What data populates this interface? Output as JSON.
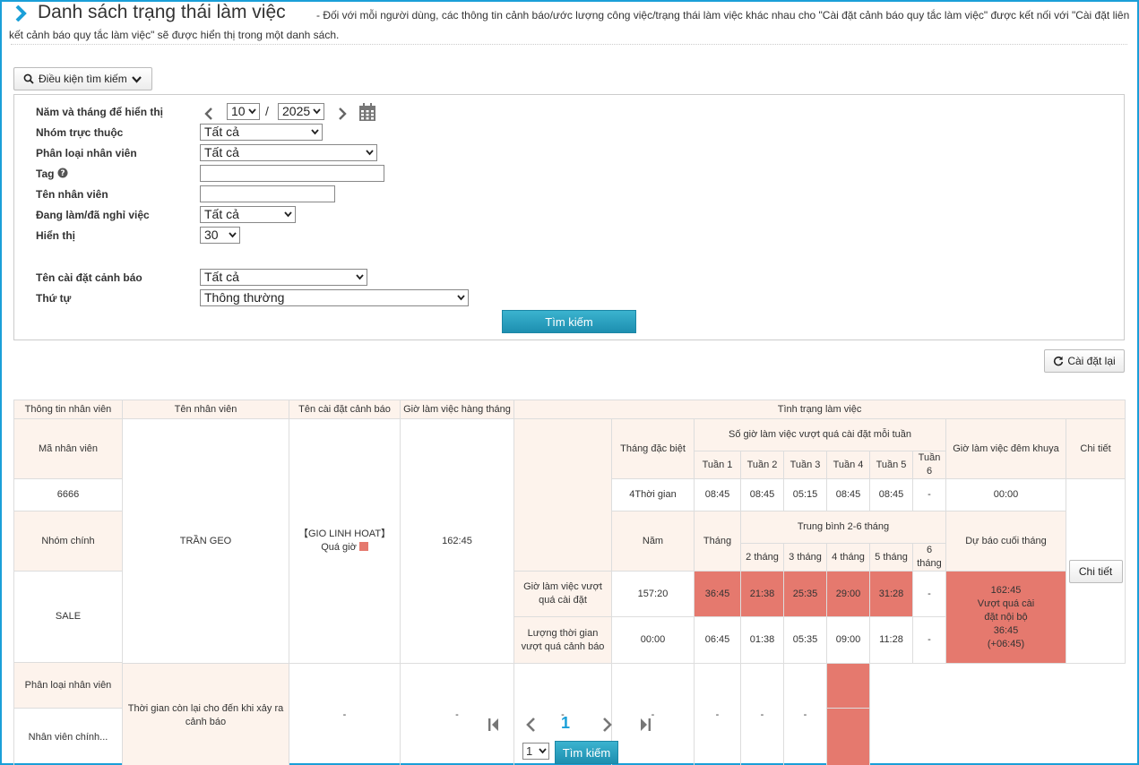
{
  "header": {
    "title": "Danh sách trạng thái làm việc",
    "description_line1": "- Đối với mỗi người dùng, các thông tin cảnh báo/ước lượng công việc/trạng thái làm việc khác nhau cho \"Cài đặt cảnh báo quy tắc làm việc\" được kết nối với \"Cài đặt liên",
    "description_line2": "kết cảnh báo quy tắc làm việc\" sẽ được hiển thị trong một danh sách."
  },
  "search_toggle": {
    "label": "Điều kiện tìm kiếm"
  },
  "form": {
    "year_month_label": "Năm và tháng để hiển thị",
    "month_value": "10",
    "year_value": "2025",
    "separator": "/",
    "group_label": "Nhóm trực thuộc",
    "group_value": "Tất cả",
    "employee_type_label": "Phân loại nhân viên",
    "employee_type_value": "Tất cả",
    "tag_label": "Tag",
    "tag_value": "",
    "employee_name_label": "Tên nhân viên",
    "employee_name_value": "",
    "status_label": "Đang làm/đã nghỉ việc",
    "status_value": "Tất cả",
    "display_label": "Hiển thị",
    "display_value": "30",
    "alert_setting_label": "Tên cài đặt cảnh báo",
    "alert_setting_value": "Tất cả",
    "order_label": "Thứ tự",
    "order_value": "Thông thường",
    "search_button": "Tìm kiếm"
  },
  "reset_button": "Cài đặt lại",
  "table": {
    "h_employee_info": "Thông tin nhân viên",
    "h_employee_name": "Tên nhân viên",
    "h_alert_name": "Tên cài đặt cảnh báo",
    "h_monthly_hours": "Giờ làm việc hàng tháng",
    "h_work_status": "Tình trạng làm việc",
    "h_employee_code": "Mã nhân viên",
    "h_special_month": "Tháng đặc biệt",
    "h_weekly_over": "Số giờ làm việc vượt quá cài đặt mỗi tuần",
    "h_night_hours": "Giờ làm việc đêm khuya",
    "h_detail": "Chi tiết",
    "weeks": [
      "Tuần 1",
      "Tuần 2",
      "Tuần 3",
      "Tuần 4",
      "Tuần 5",
      "Tuần 6"
    ],
    "special_month_value": "4Thời gian",
    "week_values": [
      "08:45",
      "08:45",
      "05:15",
      "08:45",
      "08:45",
      "-"
    ],
    "night_value": "00:00",
    "employee_code": "6666",
    "h_main_group": "Nhóm chính",
    "h_year": "Năm",
    "h_month": "Tháng",
    "h_avg": "Trung bình 2-6 tháng",
    "h_forecast": "Dự báo cuối tháng",
    "avg_months": [
      "2 tháng",
      "3 tháng",
      "4 tháng",
      "5 tháng",
      "6 tháng"
    ],
    "main_group": "SALE",
    "employee_name": "TRẦN GEO",
    "alert_name": "【GIO LINH HOAT】",
    "alert_status": "Quá giờ",
    "monthly_hours": "162:45",
    "row1_label": "Giờ làm việc vượt quá cài đặt",
    "row1_year": "157:20",
    "row1_month": "36:45",
    "row1_avgs": [
      "21:38",
      "25:35",
      "29:00",
      "31:28",
      "-"
    ],
    "forecast": [
      "162:45",
      "Vượt quá cài",
      "đặt nội bộ",
      "36:45",
      "(+06:45)"
    ],
    "detail_button": "Chi tiết",
    "h_employee_type": "Phân loại nhân viên",
    "row2_label": "Lượng thời gian vượt quá cảnh báo",
    "row2_year": "00:00",
    "row2_month": "06:45",
    "row2_avgs": [
      "01:38",
      "05:35",
      "09:00",
      "11:28",
      "-"
    ],
    "employee_type": "Nhân viên chính...",
    "row3_label": "Thời gian còn lại cho đến khi xảy ra cảnh báo",
    "row3_year": "-",
    "row3_month": "-",
    "row3_avgs": [
      "-",
      "-",
      "-",
      "-",
      "-"
    ]
  },
  "pagination": {
    "current_page": "1",
    "page_select": "1",
    "go_button": "Tìm kiếm"
  },
  "colors": {
    "accent": "#1a9fd8",
    "alert": "#e5796e",
    "header_bg": "#fdf3ec"
  }
}
